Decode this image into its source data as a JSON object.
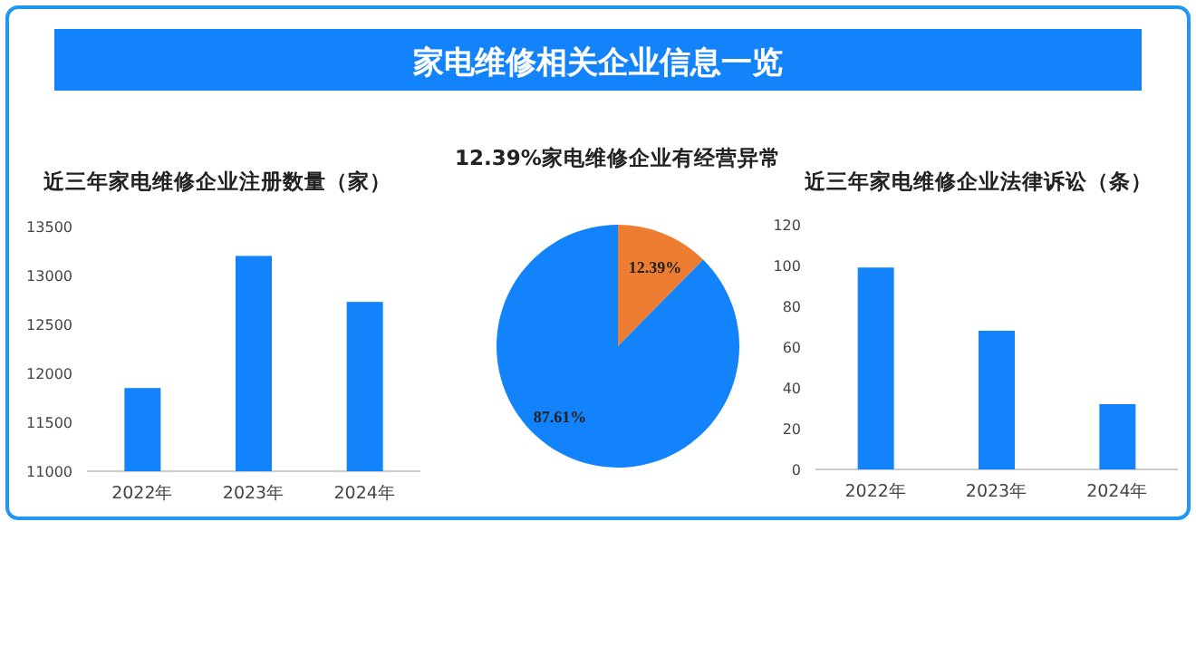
{
  "chart_data": [
    {
      "type": "other",
      "title": "家电维修相关企业信息一览"
    },
    {
      "type": "bar",
      "title": "近三年家电维修企业注册数量（家）",
      "categories": [
        "2022年",
        "2023年",
        "2024年"
      ],
      "values": [
        11850,
        13200,
        12730
      ],
      "color": "#1283fb",
      "ylim": [
        11000,
        13500
      ],
      "yticks": [
        11000,
        11500,
        12000,
        12500,
        13000,
        13500
      ]
    },
    {
      "type": "pie",
      "title": "12.39%家电维修企业有经营异常",
      "categories": [
        null,
        null
      ],
      "values": [
        12.39,
        87.61
      ],
      "colors": [
        "#ed7d31",
        "#1283fb"
      ],
      "value_labels": [
        "12.39%",
        "87.61%"
      ]
    },
    {
      "type": "bar",
      "title": "近三年家电维修企业法律诉讼（条）",
      "categories": [
        "2022年",
        "2023年",
        "2024年"
      ],
      "values": [
        99,
        68,
        32
      ],
      "color": "#1283fb",
      "ylim": [
        0,
        120
      ],
      "yticks": [
        0,
        20,
        40,
        60,
        80,
        100,
        120
      ]
    }
  ]
}
